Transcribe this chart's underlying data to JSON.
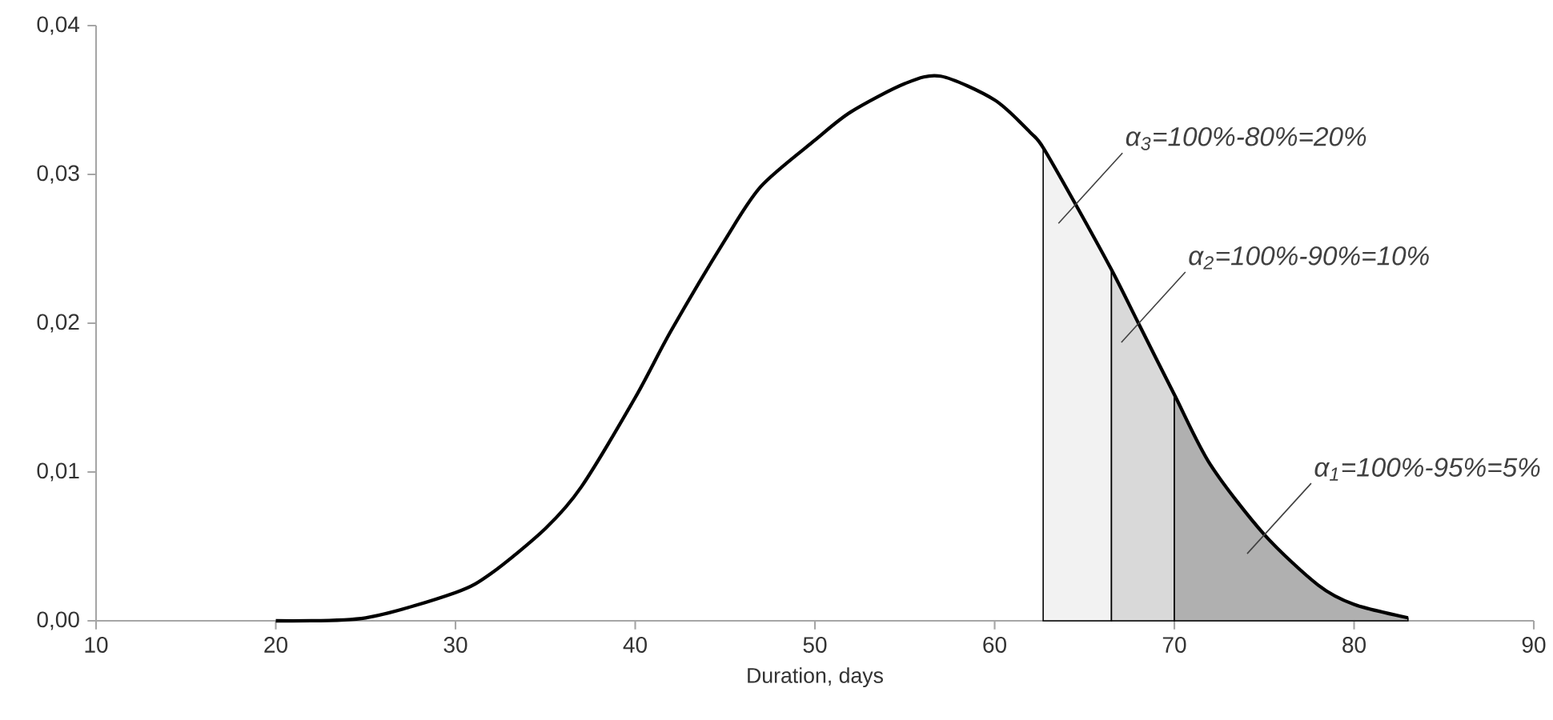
{
  "chart_data": {
    "type": "line",
    "xlabel": "Duration, days",
    "xlim": [
      10,
      90
    ],
    "xticks": [
      10,
      20,
      30,
      40,
      50,
      60,
      70,
      80,
      90
    ],
    "ylim": [
      0,
      0.04
    ],
    "yticks": [
      {
        "value": 0,
        "label": "0,00"
      },
      {
        "value": 0.01,
        "label": "0,01"
      },
      {
        "value": 0.02,
        "label": "0,02"
      },
      {
        "value": 0.03,
        "label": "0,03"
      },
      {
        "value": 0.04,
        "label": "0,04"
      }
    ],
    "marker": "none",
    "series": [
      {
        "type": "area",
        "color": "#f2f2f2",
        "x": [
          62.7,
          64.5,
          66.5
        ],
        "values": [
          0.0318,
          0.028,
          0.0236
        ]
      },
      {
        "type": "area",
        "color": "#d9d9d9",
        "x": [
          66.5,
          68,
          70
        ],
        "values": [
          0.0236,
          0.02,
          0.0152
        ]
      },
      {
        "type": "area",
        "color": "#b0b0b0",
        "x": [
          70,
          72,
          75,
          78,
          80,
          83
        ],
        "values": [
          0.0152,
          0.0105,
          0.0058,
          0.0024,
          0.0011,
          0.0002
        ]
      },
      {
        "type": "line",
        "color": "#000000",
        "x": [
          20,
          25,
          30,
          32,
          35,
          37,
          40,
          42,
          45,
          47,
          50,
          52,
          55,
          57,
          60,
          62,
          62.7,
          64.5,
          66.5,
          68,
          70,
          72,
          75,
          78,
          80,
          83
        ],
        "values": [
          0,
          0.0002,
          0.0019,
          0.0032,
          0.0062,
          0.009,
          0.015,
          0.0195,
          0.0256,
          0.0292,
          0.0323,
          0.0342,
          0.0361,
          0.0366,
          0.035,
          0.0328,
          0.0318,
          0.028,
          0.0236,
          0.02,
          0.0152,
          0.0105,
          0.0058,
          0.0024,
          0.0011,
          0.0002
        ]
      }
    ],
    "annotations": [
      "α$_{3}$=100%-80%=20%",
      "α$_{2}$=100%-90%=10%",
      "α$_{1}$=100%-95%=5%"
    ]
  }
}
